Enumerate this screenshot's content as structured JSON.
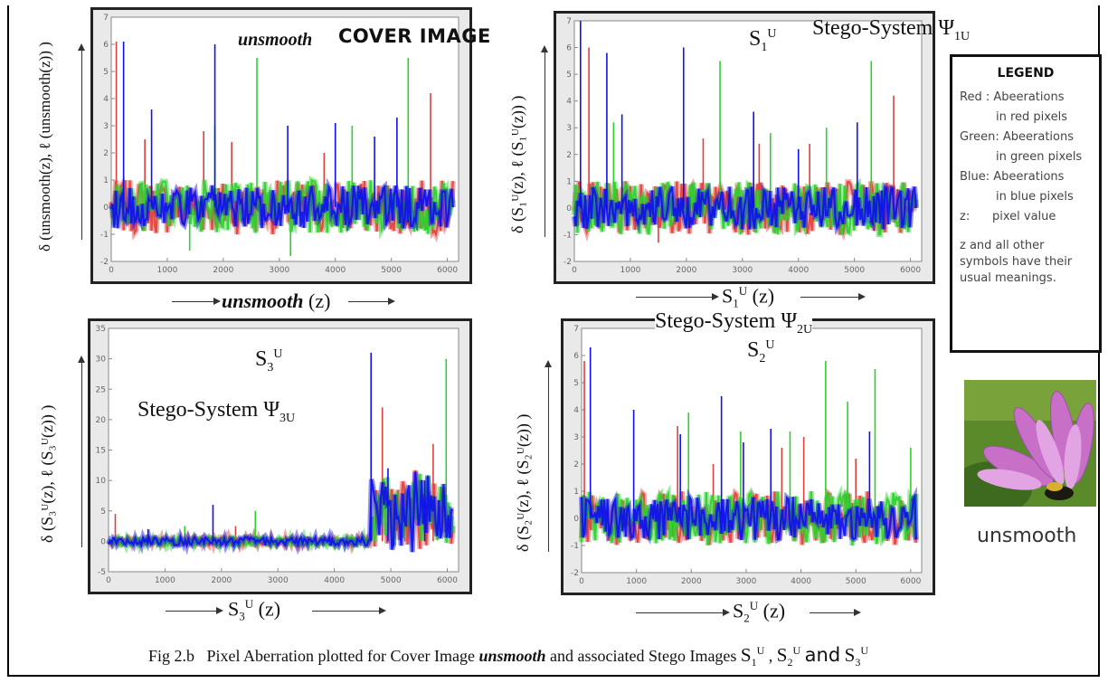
{
  "figure_caption": {
    "prefix": "Fig 2.b",
    "text1": "Pixel Aberration plotted for Cover Image",
    "cover_name": "unsmooth",
    "text2": "and associated Stego Images",
    "s1": "S",
    "s1_sub": "1",
    "s1_sup": "U",
    "sep1": ",",
    "s2": "S",
    "s2_sub": "2",
    "s2_sup": "U",
    "and": "and",
    "s3": "S",
    "s3_sub": "3",
    "s3_sup": "U"
  },
  "legend": {
    "title": "LEGEND",
    "red": "Red : Abeerations",
    "red2": "in red pixels",
    "green": "Green: Abeerations",
    "green2": "in green pixels",
    "blue": "Blue: Abeerations",
    "blue2": "in blue pixels",
    "z": "z:      pixel value",
    "note": "z and all other symbols have their usual meanings."
  },
  "photo_caption": "unsmooth",
  "colors": {
    "red": "#e0403c",
    "green": "#2fd02f",
    "blue": "#1010ee",
    "panel_bg": "#e9e9e9",
    "plot_bg": "#ffffff"
  },
  "panels": {
    "cover": {
      "annotation_name": "unsmooth",
      "annotation_title": "COVER IMAGE",
      "ylabel": "δ (unsmooth(z), ℓ (unsmooth(z)) )",
      "xlabel_name": "unsmooth",
      "xlabel_var": "(z)"
    },
    "s1": {
      "annotation_title": "Stego-System Ψ",
      "annotation_sub": "1U",
      "symbol": "S",
      "symbol_sub": "1",
      "symbol_sup": "U",
      "ylabel": "δ (S₁ᵁ(z), ℓ (S₁ᵁ(z)) )",
      "xlabel_sym": "S",
      "xlabel_sub": "1",
      "xlabel_sup": "U",
      "xlabel_var": "(z)"
    },
    "s3": {
      "annotation_title": "Stego-System Ψ",
      "annotation_sub": "3U",
      "symbol": "S",
      "symbol_sub": "3",
      "symbol_sup": "U",
      "ylabel": "δ (S₃ᵁ(z), ℓ (S₃ᵁ(z)) )",
      "xlabel_sym": "S",
      "xlabel_sub": "3",
      "xlabel_sup": "U",
      "xlabel_var": "(z)"
    },
    "s2": {
      "annotation_title": "Stego-System Ψ",
      "annotation_sub": "2U",
      "symbol": "S",
      "symbol_sub": "2",
      "symbol_sup": "U",
      "ylabel": "δ (S₂ᵁ(z), ℓ (S₂ᵁ(z)) )",
      "xlabel_sym": "S",
      "xlabel_sub": "2",
      "xlabel_sup": "U",
      "xlabel_var": "(z)"
    }
  },
  "chart_data": [
    {
      "id": "cover",
      "type": "line",
      "xlim": [
        0,
        6200
      ],
      "ylim": [
        -2,
        7
      ],
      "xticks": [
        0,
        1000,
        2000,
        3000,
        4000,
        5000,
        6000
      ],
      "yticks": [
        -2,
        -1,
        0,
        1,
        2,
        3,
        4,
        5,
        6,
        7
      ],
      "grid": false,
      "series": [
        {
          "color": "red",
          "baseline": 0,
          "noise": 1.0,
          "spikes": [
            [
              90,
              6.1
            ],
            [
              1650,
              2.8
            ],
            [
              2150,
              2.4
            ],
            [
              5700,
              4.2
            ],
            [
              600,
              2.5
            ],
            [
              3800,
              2.0
            ]
          ]
        },
        {
          "color": "green",
          "baseline": 0,
          "noise": 1.0,
          "spikes": [
            [
              2600,
              5.5
            ],
            [
              5300,
              5.5
            ],
            [
              1850,
              3.0
            ],
            [
              1400,
              -1.6
            ],
            [
              3200,
              -1.8
            ],
            [
              4300,
              3.0
            ]
          ]
        },
        {
          "color": "blue",
          "baseline": 0,
          "noise": 0.8,
          "spikes": [
            [
              220,
              6.1
            ],
            [
              1850,
              6.0
            ],
            [
              720,
              3.6
            ],
            [
              5100,
              3.3
            ],
            [
              3150,
              3.0
            ],
            [
              4700,
              2.6
            ],
            [
              4000,
              3.1
            ]
          ]
        }
      ]
    },
    {
      "id": "s1",
      "type": "line",
      "xlim": [
        0,
        6200
      ],
      "ylim": [
        -2,
        7
      ],
      "xticks": [
        0,
        1000,
        2000,
        3000,
        4000,
        5000,
        6000
      ],
      "yticks": [
        -2,
        -1,
        0,
        1,
        2,
        3,
        4,
        5,
        6,
        7
      ],
      "grid": false,
      "series": [
        {
          "color": "red",
          "baseline": 0,
          "noise": 1.0,
          "spikes": [
            [
              260,
              6.0
            ],
            [
              2300,
              2.6
            ],
            [
              5700,
              4.2
            ],
            [
              3300,
              2.4
            ],
            [
              1500,
              -1.3
            ],
            [
              4200,
              2.4
            ]
          ]
        },
        {
          "color": "green",
          "baseline": 0,
          "noise": 1.0,
          "spikes": [
            [
              2600,
              5.5
            ],
            [
              5300,
              5.5
            ],
            [
              700,
              3.2
            ],
            [
              3500,
              2.8
            ],
            [
              4500,
              3.0
            ]
          ]
        },
        {
          "color": "blue",
          "baseline": 0,
          "noise": 0.8,
          "spikes": [
            [
              110,
              7.0
            ],
            [
              1950,
              6.0
            ],
            [
              580,
              5.8
            ],
            [
              3200,
              3.6
            ],
            [
              5050,
              3.2
            ],
            [
              850,
              3.5
            ],
            [
              4000,
              2.2
            ]
          ]
        }
      ]
    },
    {
      "id": "s3",
      "type": "line",
      "xlim": [
        0,
        6200
      ],
      "ylim": [
        -5,
        35
      ],
      "xticks": [
        0,
        1000,
        2000,
        3000,
        4000,
        5000,
        6000
      ],
      "yticks": [
        -5,
        0,
        5,
        10,
        15,
        20,
        25,
        30,
        35
      ],
      "grid": false,
      "series": [
        {
          "color": "red",
          "baseline": 0,
          "noise": 1.0,
          "spikes": [
            [
              120,
              4.5
            ],
            [
              4850,
              22.0
            ],
            [
              5750,
              16.0
            ],
            [
              2250,
              2.5
            ],
            [
              5250,
              8.0
            ]
          ]
        },
        {
          "color": "green",
          "baseline": 0,
          "noise": 1.0,
          "spikes": [
            [
              2600,
              5.0
            ],
            [
              5980,
              30.0
            ],
            [
              4650,
              17.0
            ],
            [
              1350,
              2.5
            ],
            [
              5400,
              9.0
            ]
          ]
        },
        {
          "color": "blue",
          "baseline": 0,
          "noise": 0.8,
          "spikes": [
            [
              4650,
              31.0
            ],
            [
              1850,
              6.0
            ],
            [
              4950,
              12.0
            ],
            [
              5600,
              10.0
            ],
            [
              700,
              2.0
            ]
          ]
        }
      ]
    },
    {
      "id": "s2",
      "type": "line",
      "xlim": [
        0,
        6200
      ],
      "ylim": [
        -2,
        7
      ],
      "xticks": [
        0,
        1000,
        2000,
        3000,
        4000,
        5000,
        6000
      ],
      "yticks": [
        -2,
        -1,
        0,
        1,
        2,
        3,
        4,
        5,
        6,
        7
      ],
      "grid": false,
      "series": [
        {
          "color": "red",
          "baseline": 0,
          "noise": 1.0,
          "spikes": [
            [
              50,
              5.8
            ],
            [
              1750,
              3.4
            ],
            [
              2400,
              2.0
            ],
            [
              3650,
              2.6
            ],
            [
              4050,
              3.0
            ],
            [
              5000,
              2.2
            ]
          ]
        },
        {
          "color": "green",
          "baseline": 0,
          "noise": 1.0,
          "spikes": [
            [
              4450,
              5.8
            ],
            [
              5350,
              5.5
            ],
            [
              4850,
              4.3
            ],
            [
              1950,
              3.9
            ],
            [
              2900,
              3.2
            ],
            [
              3800,
              3.2
            ],
            [
              6000,
              2.6
            ]
          ]
        },
        {
          "color": "blue",
          "baseline": 0,
          "noise": 0.8,
          "spikes": [
            [
              160,
              6.3
            ],
            [
              2550,
              4.5
            ],
            [
              950,
              4.0
            ],
            [
              1800,
              3.1
            ],
            [
              3450,
              3.3
            ],
            [
              5250,
              3.2
            ],
            [
              2950,
              2.8
            ]
          ]
        }
      ]
    }
  ]
}
